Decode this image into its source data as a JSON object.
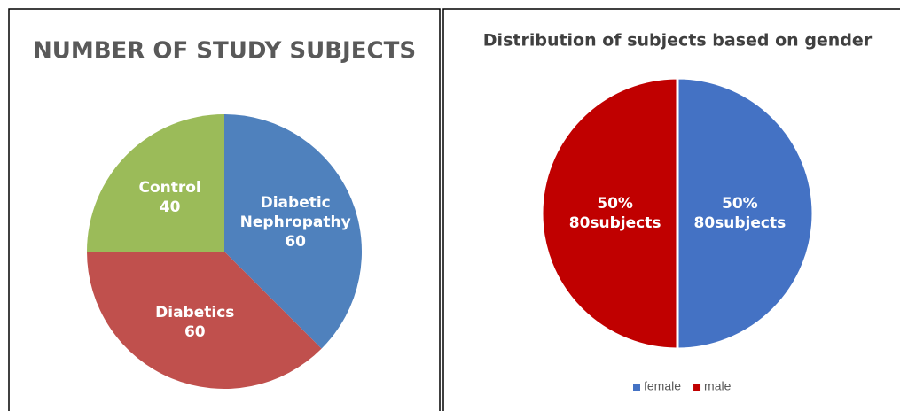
{
  "chart_data": [
    {
      "type": "pie",
      "title": "NUMBER OF STUDY SUBJECTS",
      "categories": [
        "Diabetic Nephropathy",
        "Diabetics",
        "Control"
      ],
      "values": [
        60,
        60,
        40
      ],
      "colors": [
        "#4f81bd",
        "#c0504d",
        "#9bbb59"
      ],
      "legend": "none"
    },
    {
      "type": "pie",
      "title": "Distribution of subjects based on gender",
      "categories": [
        "female",
        "male"
      ],
      "values": [
        50,
        50
      ],
      "value_labels": [
        "50%",
        "50%"
      ],
      "data_labels": [
        "80subjects",
        "80subjects"
      ],
      "colors": [
        "#4472c4",
        "#c00000"
      ],
      "legend": "bottom"
    }
  ]
}
